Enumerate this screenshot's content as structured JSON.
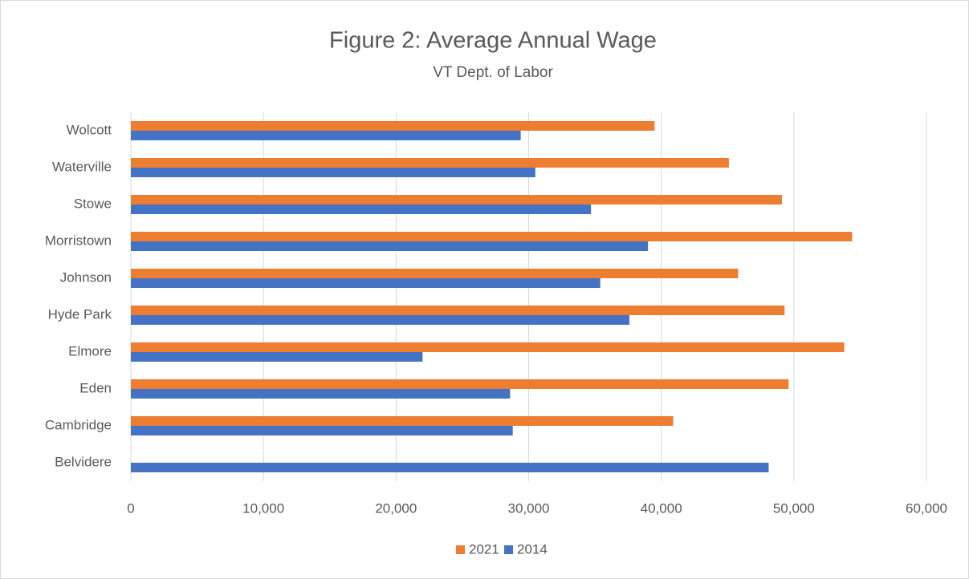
{
  "chart_data": {
    "type": "bar",
    "orientation": "horizontal",
    "title": "Figure 2: Average Annual Wage",
    "subtitle": "VT Dept. of Labor",
    "categories": [
      "Belvidere",
      "Cambridge",
      "Eden",
      "Elmore",
      "Hyde Park",
      "Johnson",
      "Morristown",
      "Stowe",
      "Waterville",
      "Wolcott"
    ],
    "series": [
      {
        "name": "2021",
        "color": "#ed7d31",
        "values": [
          null,
          40900,
          49600,
          53800,
          49300,
          45800,
          54400,
          49100,
          45100,
          39500
        ]
      },
      {
        "name": "2014",
        "color": "#4472c4",
        "values": [
          48100,
          28800,
          28600,
          22000,
          37600,
          35400,
          39000,
          34700,
          30500,
          29400
        ]
      }
    ],
    "xlim": [
      0,
      60000
    ],
    "xticks": [
      0,
      {
        "value": 10000,
        "label": "10,000"
      },
      {
        "value": 20000,
        "label": "20,000"
      },
      {
        "value": 30000,
        "label": "30,000"
      },
      {
        "value": 40000,
        "label": "40,000"
      },
      {
        "value": 50000,
        "label": "50,000"
      },
      {
        "value": 60000,
        "label": "60,000"
      }
    ],
    "grid": true,
    "legend": "bottom"
  }
}
